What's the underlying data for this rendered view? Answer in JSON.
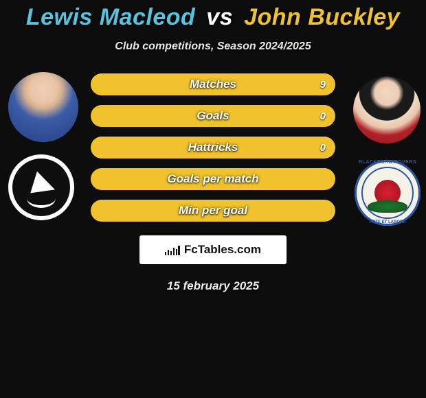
{
  "colors": {
    "background": "#0d0d0d",
    "player1_accent": "#57c3e0",
    "player2_accent": "#f0c22e",
    "bar_empty": "#0d0d0d",
    "bar_border_p1": "#57c3e0",
    "bar_border_p2": "#f0c22e",
    "text": "#ffffff",
    "attribution_bg": "#ffffff",
    "attribution_text": "#111111"
  },
  "typography": {
    "title_fontsize": 34,
    "subtitle_fontsize": 16,
    "bar_label_fontsize": 17,
    "bar_value_fontsize": 15,
    "date_fontsize": 17,
    "italic": true,
    "weight": "bold"
  },
  "title": {
    "player1": "Lewis Macleod",
    "vs": "vs",
    "player2": "John Buckley"
  },
  "subtitle": "Club competitions, Season 2024/2025",
  "bars_style": {
    "type": "stacked-proportion-bar",
    "height": 32,
    "radius": 16,
    "gap": 14
  },
  "stats": [
    {
      "label": "Matches",
      "left_value": "",
      "right_value": "9",
      "left_pct": 0,
      "right_pct": 100
    },
    {
      "label": "Goals",
      "left_value": "",
      "right_value": "0",
      "left_pct": 0,
      "right_pct": 100
    },
    {
      "label": "Hattricks",
      "left_value": "",
      "right_value": "0",
      "left_pct": 0,
      "right_pct": 100
    },
    {
      "label": "Goals per match",
      "left_value": "",
      "right_value": "",
      "left_pct": 0,
      "right_pct": 100
    },
    {
      "label": "Min per goal",
      "left_value": "",
      "right_value": "",
      "left_pct": 0,
      "right_pct": 100
    }
  ],
  "attribution": "FcTables.com",
  "date": "15 february 2025",
  "badges": {
    "left_club": "Plymouth",
    "right_club": "Blackburn Rovers"
  }
}
